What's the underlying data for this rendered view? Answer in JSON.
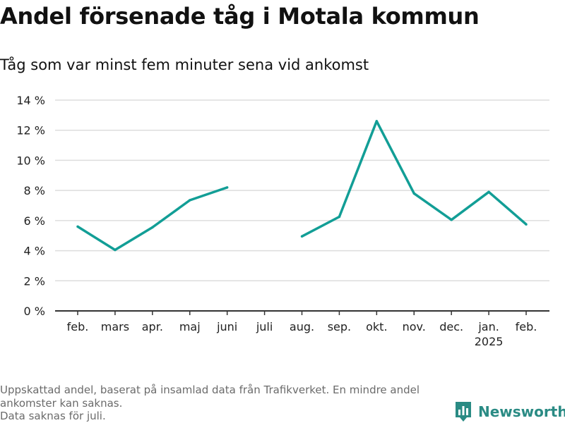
{
  "title": "Andel försenade tåg i Motala kommun",
  "subtitle": "Tåg som var minst fem minuter sena vid ankomst",
  "footnote": {
    "line1": "Uppskattad andel, baserat på insamlad data från Trafikverket. En mindre andel ankomster kan saknas.",
    "line2": "Data saknas för juli."
  },
  "brand": {
    "name": "Newsworthy",
    "icon": "bar-chart-logo-icon"
  },
  "colors": {
    "line": "#129e96",
    "grid": "#dddddd",
    "axis": "#333333",
    "brand": "#2a8b84"
  },
  "chart_data": {
    "type": "line",
    "title": "Andel försenade tåg i Motala kommun",
    "subtitle": "Tåg som var minst fem minuter sena vid ankomst",
    "xlabel": "",
    "ylabel": "",
    "categories": [
      "feb.",
      "mars",
      "apr.",
      "maj",
      "juni",
      "juli",
      "aug.",
      "sep.",
      "okt.",
      "nov.",
      "dec.",
      "jan.",
      "feb."
    ],
    "category_sublabels": [
      "",
      "",
      "",
      "",
      "",
      "",
      "",
      "",
      "",
      "",
      "",
      "2025",
      ""
    ],
    "series": [
      {
        "values": [
          5.6,
          4.05,
          5.55,
          7.35,
          8.2,
          null,
          4.95,
          6.25,
          12.6,
          7.8,
          6.05,
          7.9,
          5.75
        ]
      }
    ],
    "ylim": [
      0,
      14
    ],
    "yticks": [
      0,
      2,
      4,
      6,
      8,
      10,
      12,
      14
    ],
    "ytick_labels": [
      "0 %",
      "2 %",
      "4 %",
      "6 %",
      "8 %",
      "10 %",
      "12 %",
      "14 %"
    ],
    "grid": true,
    "legend": "none"
  }
}
